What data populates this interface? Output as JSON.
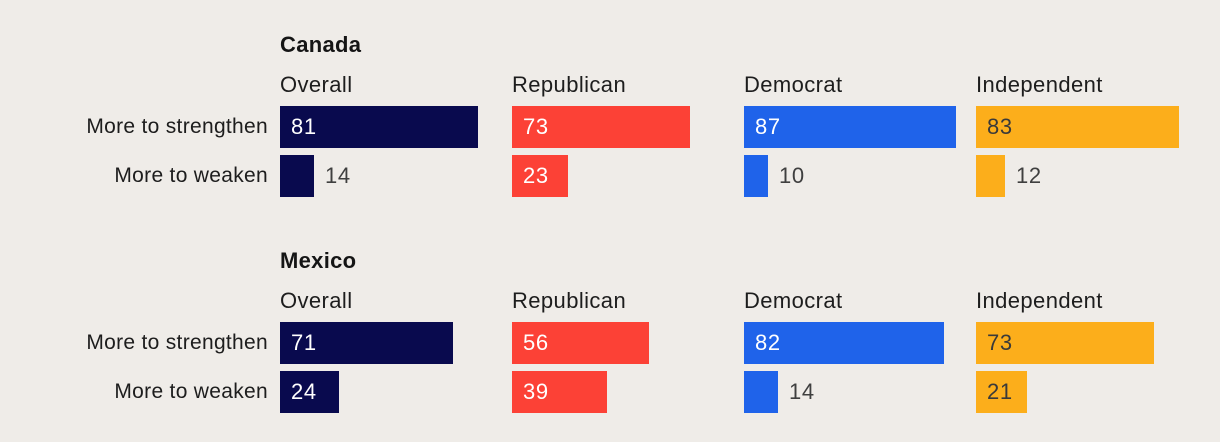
{
  "chart_data": {
    "type": "bar",
    "orientation": "horizontal",
    "value_range": [
      0,
      100
    ],
    "grid": false,
    "legend": "none",
    "categories": [
      "More to strengthen",
      "More to weaken"
    ],
    "groups": [
      {
        "name": "Overall",
        "color": "#090a4e",
        "value_label_color": "#ffffff"
      },
      {
        "name": "Republican",
        "color": "#fc4136",
        "value_label_color": "#ffffff"
      },
      {
        "name": "Democrat",
        "color": "#1f63ea",
        "value_label_color": "#ffffff"
      },
      {
        "name": "Independent",
        "color": "#fcae1b",
        "value_label_color": "#3a3a3a"
      }
    ],
    "panels": [
      {
        "title": "Canada",
        "series": [
          {
            "group": "Overall",
            "values": [
              81,
              14
            ]
          },
          {
            "group": "Republican",
            "values": [
              73,
              23
            ]
          },
          {
            "group": "Democrat",
            "values": [
              87,
              10
            ]
          },
          {
            "group": "Independent",
            "values": [
              83,
              12
            ]
          }
        ]
      },
      {
        "title": "Mexico",
        "series": [
          {
            "group": "Overall",
            "values": [
              71,
              24
            ]
          },
          {
            "group": "Republican",
            "values": [
              56,
              39
            ]
          },
          {
            "group": "Democrat",
            "values": [
              82,
              14
            ]
          },
          {
            "group": "Independent",
            "values": [
              73,
              21
            ]
          }
        ]
      }
    ]
  },
  "colors": {
    "background": "#efece8",
    "heading_text": "#151515",
    "label_text": "#1d1d1d",
    "value_outside_text": "#3f3f3f"
  }
}
